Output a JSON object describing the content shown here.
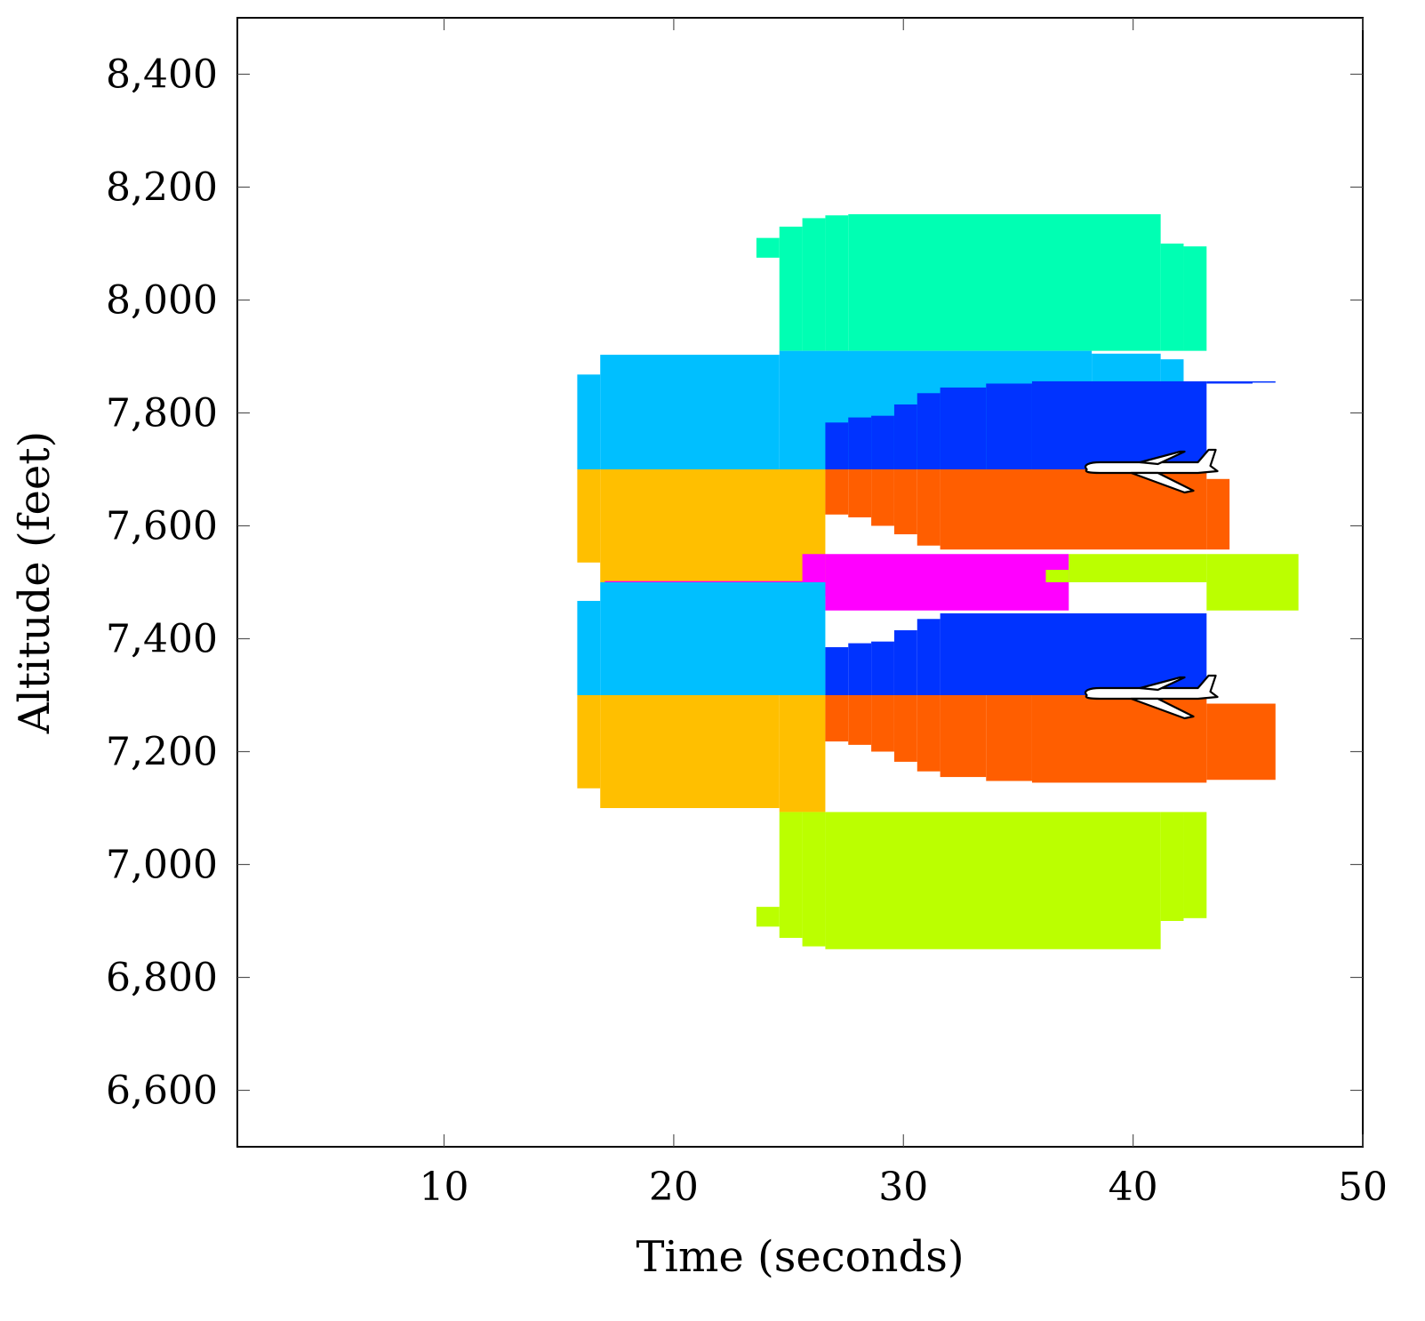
{
  "chart_data": {
    "type": "area",
    "xlabel": "Time (seconds)",
    "ylabel": "Altitude (feet)",
    "xlim": [
      1,
      50
    ],
    "ylim": [
      6500,
      8500
    ],
    "xticks": [
      10,
      20,
      30,
      40,
      50
    ],
    "yticks": [
      6600,
      6800,
      7000,
      7200,
      7400,
      7600,
      7800,
      8000,
      8200,
      8400
    ],
    "xtick_labels": [
      "10",
      "20",
      "30",
      "40",
      "50"
    ],
    "ytick_labels": [
      "6,600",
      "6,800",
      "7,000",
      "7,200",
      "7,400",
      "7,600",
      "7,800",
      "8,000",
      "8,200",
      "8,400"
    ],
    "grid": false,
    "colors": {
      "teal": "#00ffb3",
      "light_blue": "#00bfff",
      "dark_blue": "#0033ff",
      "amber": "#ffbf00",
      "orange": "#ff5e00",
      "magenta": "#ff00ff",
      "lime": "#bbff00"
    },
    "series": [
      {
        "color": "teal",
        "y_lo": 7910,
        "steps": [
          [
            23.6,
            8110
          ],
          [
            24.6,
            8130
          ],
          [
            25.6,
            8145
          ],
          [
            26.6,
            8150
          ],
          [
            27.6,
            8152
          ],
          [
            41.2,
            8100
          ],
          [
            42.2,
            8095
          ],
          [
            43.2,
            null
          ]
        ],
        "lo_steps": [
          [
            23.6,
            8075
          ],
          [
            24.6,
            7910
          ],
          [
            43.2,
            null
          ]
        ]
      },
      {
        "color": "light_blue",
        "y_lo": 7700,
        "steps": [
          [
            15.8,
            7868
          ],
          [
            16.8,
            7903
          ],
          [
            24.6,
            7910
          ],
          [
            38.2,
            7905
          ],
          [
            41.2,
            7895
          ],
          [
            42.2,
            null
          ]
        ]
      },
      {
        "color": "dark_blue",
        "y_lo": 7700,
        "steps": [
          [
            26.6,
            7783
          ],
          [
            27.6,
            7792
          ],
          [
            28.6,
            7795
          ],
          [
            29.6,
            7815
          ],
          [
            30.6,
            7835
          ],
          [
            31.6,
            7845
          ],
          [
            33.6,
            7852
          ],
          [
            35.6,
            7856
          ],
          [
            43.2,
            7856
          ],
          [
            46.2,
            null
          ]
        ],
        "lo_steps": [
          [
            26.6,
            7700
          ],
          [
            43.2,
            7852
          ],
          [
            45.2,
            7855
          ],
          [
            46.2,
            null
          ]
        ]
      },
      {
        "color": "amber",
        "y_lo": 7500,
        "steps": [
          [
            15.8,
            7700
          ],
          [
            26.6,
            null
          ]
        ],
        "lo_steps": [
          [
            15.8,
            7535
          ],
          [
            16.8,
            7500
          ],
          [
            26.6,
            null
          ]
        ]
      },
      {
        "color": "orange",
        "y_lo": 7550,
        "steps": [
          [
            26.6,
            7700
          ],
          [
            43.2,
            7683
          ],
          [
            44.2,
            null
          ]
        ],
        "lo_steps": [
          [
            26.6,
            7620
          ],
          [
            27.6,
            7615
          ],
          [
            28.6,
            7600
          ],
          [
            29.6,
            7585
          ],
          [
            30.6,
            7565
          ],
          [
            31.6,
            7558
          ],
          [
            44.2,
            null
          ]
        ]
      },
      {
        "color": "magenta",
        "y_lo": 7450,
        "steps": [
          [
            17.0,
            7502
          ],
          [
            25.6,
            7550
          ],
          [
            37.2,
            null
          ]
        ],
        "lo_steps": [
          [
            17.0,
            7498
          ],
          [
            25.6,
            7475
          ],
          [
            26.6,
            7450
          ],
          [
            37.2,
            null
          ]
        ]
      },
      {
        "color": "lime",
        "y_lo": 7450,
        "steps": [
          [
            36.2,
            7522
          ],
          [
            37.2,
            7550
          ],
          [
            43.2,
            7550
          ],
          [
            47.2,
            null
          ]
        ],
        "lo_steps": [
          [
            36.2,
            7500
          ],
          [
            43.2,
            7450
          ],
          [
            47.2,
            null
          ]
        ]
      },
      {
        "color": "light_blue",
        "y_lo": 7300,
        "steps": [
          [
            15.8,
            7467
          ],
          [
            16.8,
            7500
          ],
          [
            26.6,
            null
          ]
        ],
        "lo_steps": [
          [
            15.8,
            7300
          ],
          [
            26.6,
            null
          ]
        ]
      },
      {
        "color": "dark_blue",
        "y_lo": 7300,
        "steps": [
          [
            26.6,
            7385
          ],
          [
            27.6,
            7392
          ],
          [
            28.6,
            7395
          ],
          [
            29.6,
            7415
          ],
          [
            30.6,
            7435
          ],
          [
            31.6,
            7445
          ],
          [
            43.2,
            null
          ]
        ]
      },
      {
        "color": "amber",
        "y_lo": 7090,
        "steps": [
          [
            15.8,
            7300
          ],
          [
            26.6,
            null
          ]
        ],
        "lo_steps": [
          [
            15.8,
            7135
          ],
          [
            16.8,
            7100
          ],
          [
            24.6,
            7093
          ],
          [
            38.2,
            7100
          ],
          [
            41.2,
            7110
          ],
          [
            42.2,
            null
          ]
        ]
      },
      {
        "color": "orange",
        "y_lo": 7145,
        "steps": [
          [
            26.6,
            7300
          ],
          [
            43.2,
            7285
          ],
          [
            46.2,
            null
          ]
        ],
        "lo_steps": [
          [
            26.6,
            7218
          ],
          [
            27.6,
            7212
          ],
          [
            28.6,
            7200
          ],
          [
            29.6,
            7182
          ],
          [
            30.6,
            7165
          ],
          [
            31.6,
            7155
          ],
          [
            33.6,
            7148
          ],
          [
            35.6,
            7145
          ],
          [
            43.2,
            7150
          ],
          [
            46.2,
            null
          ]
        ]
      },
      {
        "color": "lime",
        "y_lo": 6850,
        "steps": [
          [
            23.6,
            6925
          ],
          [
            24.6,
            7093
          ],
          [
            43.2,
            null
          ]
        ],
        "lo_steps": [
          [
            23.6,
            6890
          ],
          [
            24.6,
            6870
          ],
          [
            25.6,
            6855
          ],
          [
            26.6,
            6850
          ],
          [
            41.2,
            6900
          ],
          [
            42.2,
            6905
          ],
          [
            43.2,
            null
          ]
        ]
      }
    ],
    "annotations": [
      {
        "type": "airplane-icon",
        "x": 40.5,
        "y": 7700
      },
      {
        "type": "airplane-icon",
        "x": 40.5,
        "y": 7300
      }
    ]
  }
}
